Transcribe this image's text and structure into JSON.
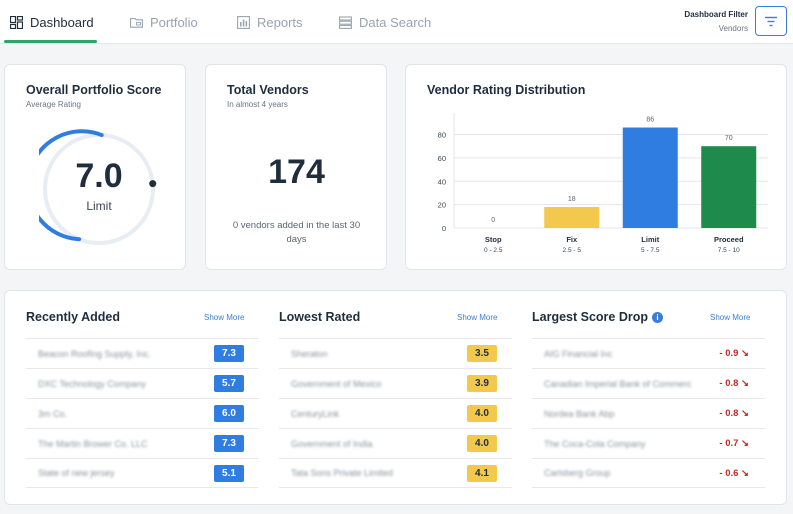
{
  "nav": {
    "tabs": [
      {
        "label": "Dashboard",
        "icon": "dashboard-icon",
        "active": true
      },
      {
        "label": "Portfolio",
        "icon": "folder-icon",
        "active": false
      },
      {
        "label": "Reports",
        "icon": "bar-chart-icon",
        "active": false
      },
      {
        "label": "Data Search",
        "icon": "database-icon",
        "active": false
      }
    ],
    "filter_title": "Dashboard Filter",
    "filter_value": "Vendors"
  },
  "score_card": {
    "title": "Overall Portfolio Score",
    "subtitle": "Average Rating",
    "value": "7.0",
    "label": "Limit",
    "fraction": 0.7
  },
  "vendors_card": {
    "title": "Total Vendors",
    "subtitle": "In almost 4 years",
    "count": "174",
    "note": "0 vendors added in the last 30 days"
  },
  "distribution_card": {
    "title": "Vendor Rating Distribution"
  },
  "chart_data": {
    "type": "bar",
    "categories": [
      "Stop",
      "Fix",
      "Limit",
      "Proceed"
    ],
    "ranges": [
      "0 - 2.5",
      "2.5 - 5",
      "5 - 7.5",
      "7.5 - 10"
    ],
    "values": [
      0,
      18,
      86,
      70
    ],
    "colors": [
      "#f2c94c",
      "#f2c94c",
      "#2f7de1",
      "#1e8a4c"
    ],
    "ylim": [
      0,
      95
    ],
    "yticks": [
      0,
      20,
      40,
      60,
      80
    ],
    "grid": true
  },
  "recently_added": {
    "title": "Recently Added",
    "show_more": "Show More",
    "items": [
      {
        "name": "Beacon Roofing Supply, Inc.",
        "score": "7.3",
        "color": "blue"
      },
      {
        "name": "DXC Technology Company",
        "score": "5.7",
        "color": "blue"
      },
      {
        "name": "3m Co.",
        "score": "6.0",
        "color": "blue"
      },
      {
        "name": "The Martin Brower Co. LLC",
        "score": "7.3",
        "color": "blue"
      },
      {
        "name": "State of new jersey",
        "score": "5.1",
        "color": "blue"
      }
    ]
  },
  "lowest_rated": {
    "title": "Lowest Rated",
    "show_more": "Show More",
    "items": [
      {
        "name": "Sheraton",
        "score": "3.5",
        "color": "yellow"
      },
      {
        "name": "Government of Mexico",
        "score": "3.9",
        "color": "yellow"
      },
      {
        "name": "CenturyLink",
        "score": "4.0",
        "color": "yellow"
      },
      {
        "name": "Government of India",
        "score": "4.0",
        "color": "yellow"
      },
      {
        "name": "Tata Sons Private Limited",
        "score": "4.1",
        "color": "yellow"
      }
    ]
  },
  "largest_drop": {
    "title": "Largest Score Drop",
    "show_more": "Show More",
    "items": [
      {
        "name": "AIG Financial Inc",
        "drop": "- 0.9 ↘"
      },
      {
        "name": "Canadian Imperial Bank of Commerce",
        "drop": "- 0.8 ↘"
      },
      {
        "name": "Nordea Bank Abp",
        "drop": "- 0.8 ↘"
      },
      {
        "name": "The Coca-Cola Company",
        "drop": "- 0.7 ↘"
      },
      {
        "name": "Carlsberg Group",
        "drop": "- 0.6 ↘"
      }
    ]
  },
  "colors": {
    "accent": "#2ea36a",
    "primary": "#3b7dd8",
    "score_blue": "#2f7de1",
    "score_yellow": "#f2c94c",
    "drop_red": "#c62828"
  }
}
